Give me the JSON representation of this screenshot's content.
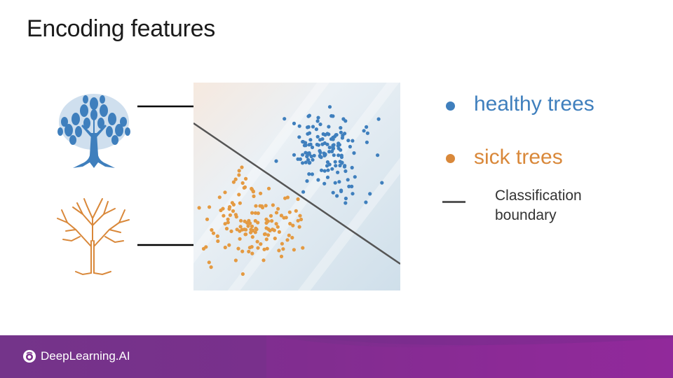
{
  "slide": {
    "title": "Encoding features"
  },
  "legend": {
    "healthy_label": "healthy trees",
    "sick_label": "sick trees",
    "boundary_label": "Classification boundary"
  },
  "footer": {
    "brand": "DeepLearning.AI"
  },
  "colors": {
    "healthy": "#3f7fbd",
    "sick": "#e49a42",
    "boundary": "#555555",
    "footer": "#7a2f8c"
  },
  "icons": {
    "healthy_tree": "healthy-tree-icon",
    "sick_tree": "sick-tree-icon",
    "brand": "deeplearning-logo-icon"
  }
}
